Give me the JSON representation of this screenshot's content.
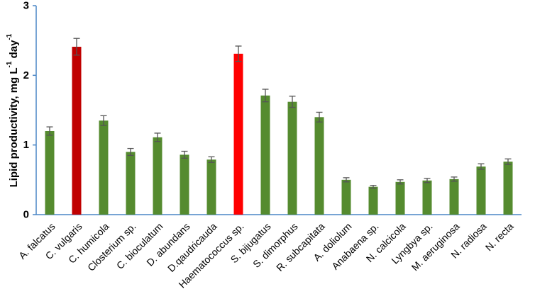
{
  "chart_data": {
    "type": "bar",
    "title": "",
    "xlabel": "",
    "ylabel": "Lipid productivity, mg L",
    "ylabel_sup1": "-1",
    "ylabel_mid": " day",
    "ylabel_sup2": "-1",
    "ylim": [
      0,
      3
    ],
    "yticks": [
      "0",
      "1",
      "2",
      "3"
    ],
    "grid": false,
    "legend": "none",
    "categories": [
      "A. falcatus",
      "C. vulgaris",
      "C. humicola",
      "Closterium sp.",
      "C. bioculatum",
      "D. abundans",
      "D.qaudricauda",
      "Haematococcus sp.",
      "S. bijugatus",
      "S. dimorphus",
      "R. subcapitata",
      "A. doliolum",
      "Anabaena sp.",
      "N. calcicola",
      "Lyngbya sp.",
      "M. aeruginosa",
      "N. radiosa",
      "N. recta"
    ],
    "values": [
      1.2,
      2.41,
      1.35,
      0.9,
      1.11,
      0.86,
      0.79,
      2.31,
      1.71,
      1.62,
      1.4,
      0.5,
      0.4,
      0.47,
      0.49,
      0.51,
      0.69,
      0.76
    ],
    "errors": [
      0.06,
      0.12,
      0.07,
      0.05,
      0.06,
      0.05,
      0.04,
      0.11,
      0.09,
      0.08,
      0.07,
      0.03,
      0.02,
      0.03,
      0.03,
      0.03,
      0.04,
      0.04
    ],
    "colors": [
      "#558B2F",
      "#C00000",
      "#558B2F",
      "#558B2F",
      "#558B2F",
      "#558B2F",
      "#558B2F",
      "#FF0000",
      "#558B2F",
      "#558B2F",
      "#558B2F",
      "#558B2F",
      "#558B2F",
      "#558B2F",
      "#558B2F",
      "#558B2F",
      "#558B2F",
      "#558B2F"
    ],
    "axis_color": "#4A86C5",
    "error_color": "#555555"
  }
}
